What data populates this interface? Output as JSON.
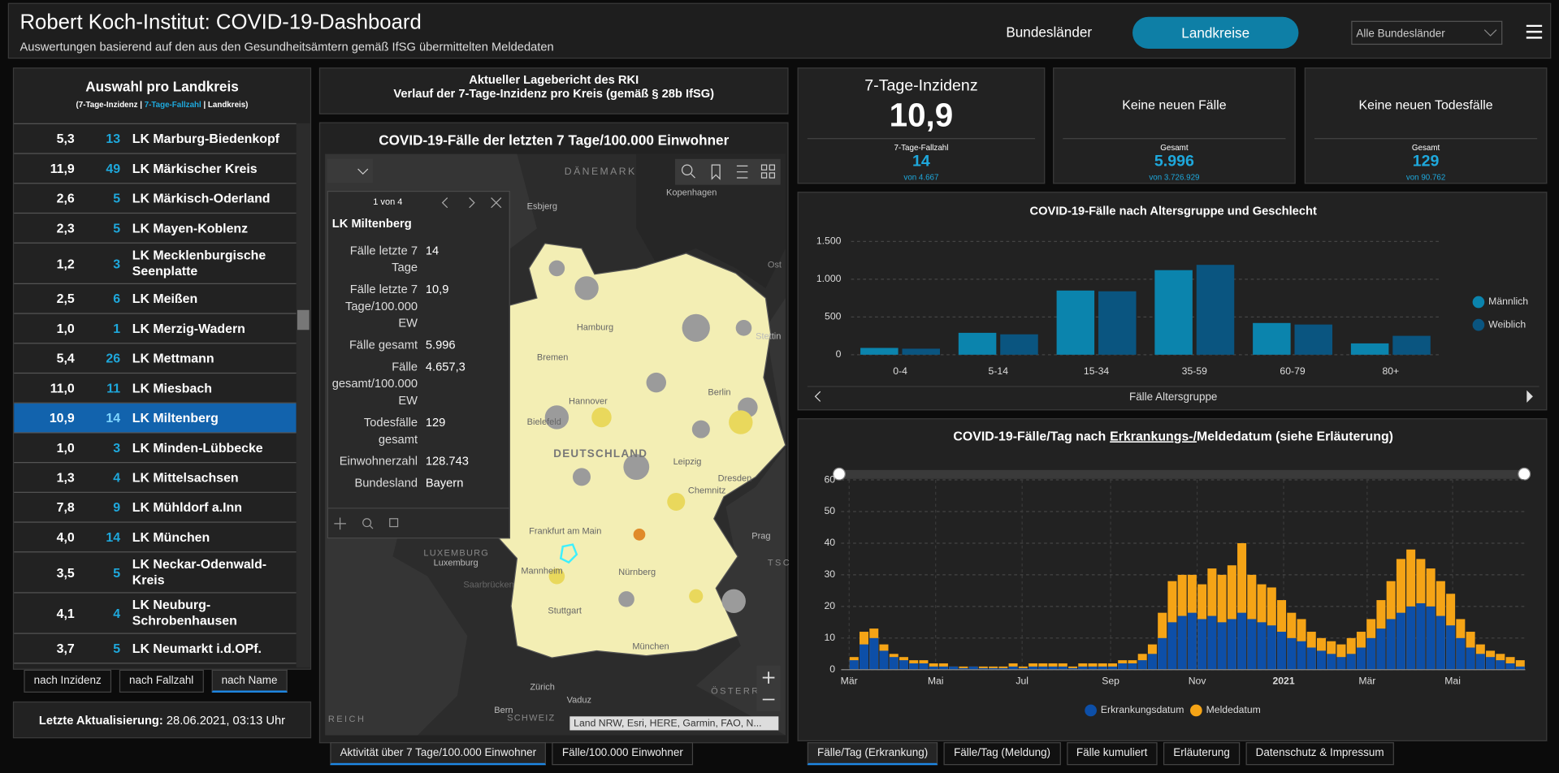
{
  "header": {
    "title": "Robert Koch-Institut: COVID-19-Dashboard",
    "subtitle": "Auswertungen basierend auf den aus den Gesundheitsämtern gemäß IfSG übermittelten Meldedaten",
    "nav": [
      "Bundesländer",
      "Landkreise"
    ],
    "dropdown": "Alle Bundesländer"
  },
  "district_list": {
    "title": "Auswahl pro Landkreis",
    "legend": [
      "(7-Tage-Inzidenz |",
      "7-Tage-Fallzahl",
      "| Landkreis)"
    ],
    "rows": [
      [
        "5,3",
        "13",
        "LK Marburg-Biedenkopf"
      ],
      [
        "11,9",
        "49",
        "LK Märkischer Kreis"
      ],
      [
        "2,6",
        "5",
        "LK Märkisch-Oderland"
      ],
      [
        "2,3",
        "5",
        "LK Mayen-Koblenz"
      ],
      [
        "1,2",
        "3",
        "LK Mecklenburgische Seenplatte"
      ],
      [
        "2,5",
        "6",
        "LK Meißen"
      ],
      [
        "1,0",
        "1",
        "LK Merzig-Wadern"
      ],
      [
        "5,4",
        "26",
        "LK Mettmann"
      ],
      [
        "11,0",
        "11",
        "LK Miesbach"
      ],
      [
        "10,9",
        "14",
        "LK Miltenberg"
      ],
      [
        "1,0",
        "3",
        "LK Minden-Lübbecke"
      ],
      [
        "1,3",
        "4",
        "LK Mittelsachsen"
      ],
      [
        "7,8",
        "9",
        "LK Mühldorf a.Inn"
      ],
      [
        "4,0",
        "14",
        "LK München"
      ],
      [
        "3,5",
        "5",
        "LK Neckar-Odenwald-Kreis"
      ],
      [
        "4,1",
        "4",
        "LK Neuburg-Schrobenhausen"
      ],
      [
        "3,7",
        "5",
        "LK Neumarkt i.d.OPf."
      ]
    ],
    "sort_buttons": [
      "nach Inzidenz",
      "nach Fallzahl",
      "nach Name"
    ]
  },
  "last_update": {
    "label": "Letzte Aktualisierung:",
    "value": "28.06.2021, 03:13 Uhr"
  },
  "map_header": [
    "Aktueller Lagebericht des RKI",
    "Verlauf der 7-Tage-Inzidenz pro Kreis (gemäß § 28b IfSG)"
  ],
  "map": {
    "title": "COVID-19-Fälle der letzten 7 Tage/100.000 Einwohner",
    "labels": [
      "DÄNEMARK",
      "Esbjerg",
      "Kopenhagen",
      "Ost",
      "Hamburg",
      "Bremen",
      "Hannover",
      "Berlin",
      "Stettin",
      "Bielefeld",
      "DEUTSCHLAND",
      "Leipzig",
      "Dresden",
      "Chemnitz",
      "Frankfurt am Main",
      "Mannheim",
      "Nürnberg",
      "Prag",
      "LUXEMBURG",
      "Luxemburg",
      "Saarbrücken",
      "Stuttgart",
      "München",
      "Zürich",
      "Vaduz",
      "Bern",
      "SCHWEIZ",
      "ÖSTERR",
      "REICH",
      "TSC"
    ],
    "attribution": "Land NRW, Esri, HERE, Garmin, FAO, N...",
    "popup": {
      "pager": "1 von 4",
      "title": "LK Miltenberg",
      "fields": [
        [
          "Fälle letzte 7 Tage",
          "14"
        ],
        [
          "Fälle letzte 7 Tage/100.000 EW",
          "10,9"
        ],
        [
          "Fälle gesamt",
          "5.996"
        ],
        [
          "Fälle gesamt/100.000 EW",
          "4.657,3"
        ],
        [
          "Todesfälle gesamt",
          "129"
        ],
        [
          "Einwohnerzahl",
          "128.743"
        ],
        [
          "Bundesland",
          "Bayern"
        ]
      ]
    },
    "tabs": [
      "Aktivität über 7 Tage/100.000 Einwohner",
      "Fälle/100.000 Einwohner"
    ]
  },
  "kpis": [
    {
      "title": "7-Tage-Inzidenz",
      "value": "10,9",
      "sub_label": "7-Tage-Fallzahl",
      "sub_value": "14",
      "sub_total": "von 4.667"
    },
    {
      "title": "Keine neuen Fälle",
      "sub_label": "Gesamt",
      "sub_value": "5.996",
      "sub_total": "von 3.726.929"
    },
    {
      "title": "Keine neuen Todesfälle",
      "sub_label": "Gesamt",
      "sub_value": "129",
      "sub_total": "von 90.762"
    }
  ],
  "age_chart": {
    "type": "bar",
    "title": "COVID-19-Fälle nach Altersgruppe und Geschlecht",
    "categories": [
      "0-4",
      "5-14",
      "15-34",
      "35-59",
      "60-79",
      "80+"
    ],
    "series": [
      {
        "name": "Männlich",
        "color": "#0b84ad",
        "values": [
          90,
          290,
          850,
          1120,
          420,
          150
        ]
      },
      {
        "name": "Weiblich",
        "color": "#0a5580",
        "values": [
          80,
          270,
          840,
          1190,
          400,
          250
        ]
      }
    ],
    "ylim": [
      0,
      1500
    ],
    "yticks": [
      0,
      500,
      {
        "value": 1000,
        "label": "1.000"
      },
      {
        "value": 1500,
        "label": "1.500"
      }
    ],
    "xlabel": "Fälle Altersgruppe",
    "grid": true
  },
  "time_chart": {
    "type": "bar",
    "title": [
      "COVID-19-Fälle/Tag nach",
      "Erkrankungs-/",
      "Meldedatum (siehe Erläuterung)"
    ],
    "x": [
      0,
      1,
      2,
      3,
      4,
      5,
      6,
      7,
      8,
      9,
      10,
      11,
      12,
      13,
      14,
      15,
      16,
      17,
      18,
      19,
      20,
      21,
      22,
      23,
      24,
      25,
      26,
      27,
      28,
      29,
      30,
      31,
      32,
      33,
      34,
      35,
      36,
      37,
      38,
      39,
      40,
      41,
      42,
      43,
      44,
      45,
      46,
      47,
      48,
      49,
      50,
      51,
      52,
      53,
      54,
      55,
      56,
      57,
      58,
      59,
      60,
      61,
      62,
      63,
      64,
      65,
      66,
      67
    ],
    "xlim": [
      0,
      68
    ],
    "xticks": [
      {
        "value": 0,
        "label": "Mär"
      },
      {
        "value": 8.7,
        "label": "Mai"
      },
      {
        "value": 17.4,
        "label": "Jul"
      },
      {
        "value": 26.3,
        "label": "Sep"
      },
      {
        "value": 35,
        "label": "Nov"
      },
      {
        "value": 43.7,
        "label": "2021"
      },
      {
        "value": 52.1,
        "label": "Mär"
      },
      {
        "value": 60.7,
        "label": "Mai"
      }
    ],
    "ylim": [
      0,
      60
    ],
    "yticks": [
      0,
      10,
      20,
      30,
      40,
      50,
      60
    ],
    "grid": true,
    "series": [
      {
        "name": "Meldedatum",
        "color": "#f5a416",
        "values": [
          4,
          12,
          13,
          8,
          5,
          4,
          3,
          3,
          2,
          2,
          1,
          1,
          1,
          1,
          1,
          1,
          2,
          1,
          2,
          2,
          2,
          2,
          1,
          2,
          2,
          2,
          2,
          3,
          3,
          5,
          8,
          18,
          28,
          30,
          30,
          27,
          32,
          30,
          33,
          40,
          30,
          27,
          26,
          22,
          18,
          16,
          12,
          10,
          9,
          8,
          10,
          12,
          16,
          22,
          28,
          35,
          38,
          35,
          32,
          28,
          24,
          16,
          12,
          8,
          6,
          5,
          4,
          3
        ]
      },
      {
        "name": "Erkrankungsdatum",
        "color": "#0d4fa8",
        "values": [
          3,
          8,
          10,
          6,
          4,
          3,
          2,
          2,
          1,
          1,
          1,
          0.5,
          1,
          0.5,
          0.5,
          0.5,
          1,
          0.5,
          1,
          1,
          1,
          1,
          0.5,
          1,
          1,
          1,
          1,
          2,
          2,
          3,
          5,
          10,
          15,
          17,
          18,
          16,
          17,
          15,
          16,
          18,
          16,
          15,
          14,
          12,
          10,
          9,
          7,
          6,
          5,
          4,
          5,
          7,
          10,
          13,
          16,
          18,
          20,
          21,
          20,
          17,
          14,
          10,
          7,
          5,
          4,
          3,
          2,
          1
        ]
      }
    ],
    "legend": [
      "Erkrankungsdatum",
      "Meldedatum"
    ]
  },
  "bottom_tabs": [
    "Fälle/Tag (Erkrankung)",
    "Fälle/Tag (Meldung)",
    "Fälle kumuliert",
    "Erläuterung",
    "Datenschutz & Impressum"
  ]
}
